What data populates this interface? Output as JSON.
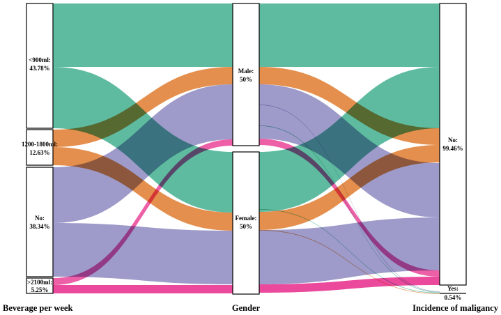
{
  "colors": {
    "lt900": "#1b9e77",
    "r1200": "#d95f02",
    "no": "#7570b3",
    "gt2100": "#e7298a"
  },
  "axes": {
    "left": "Beverage per week",
    "mid": "Gender",
    "right": "Incidence of maligancy"
  },
  "left_nodes": [
    {
      "id": "lt900",
      "name": "<900ml:",
      "pct": "43.78%"
    },
    {
      "id": "r1200",
      "name": "1200-1800ml:",
      "pct": "12.63%"
    },
    {
      "id": "no",
      "name": "No:",
      "pct": "38.34%"
    },
    {
      "id": "gt2100",
      "name": ">2100ml:",
      "pct": "5.25%"
    }
  ],
  "mid_nodes": [
    {
      "id": "male",
      "name": "Male:",
      "pct": "50%"
    },
    {
      "id": "female",
      "name": "Female:",
      "pct": "50%"
    }
  ],
  "right_nodes": [
    {
      "id": "no",
      "name": "No:",
      "pct": "99.46%"
    },
    {
      "id": "yes",
      "name": "Yes:",
      "pct": "0.54%"
    }
  ]
}
